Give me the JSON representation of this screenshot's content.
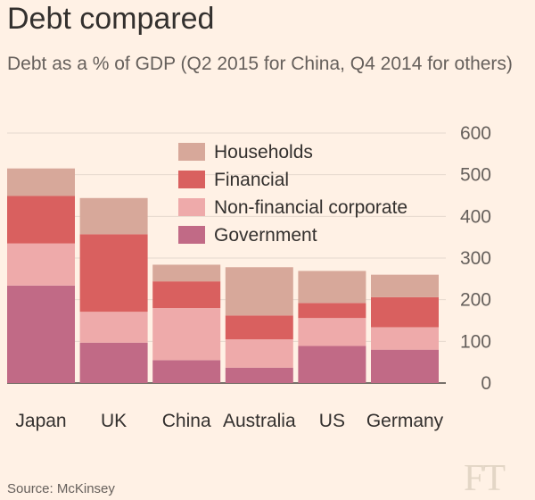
{
  "header": {
    "title": "Debt compared",
    "subtitle": "Debt as a % of GDP (Q2 2015 for China, Q4 2014 for others)"
  },
  "footer": {
    "source": "Source: McKinsey",
    "logo": "FT"
  },
  "colors": {
    "background": "#fff1e5",
    "households": "#d7a89a",
    "financial": "#d9605f",
    "non_financial_corporate": "#eeaaaa",
    "government": "#c16a86"
  },
  "chart_data": {
    "type": "bar",
    "stacked": true,
    "categories": [
      "Japan",
      "UK",
      "China",
      "Australia",
      "US",
      "Germany"
    ],
    "series": [
      {
        "name": "Government",
        "color": "#c16a86",
        "values": [
          234,
          97,
          55,
          37,
          89,
          80
        ]
      },
      {
        "name": "Non-financial corporate",
        "color": "#eeaaaa",
        "values": [
          101,
          74,
          125,
          68,
          67,
          54
        ]
      },
      {
        "name": "Financial",
        "color": "#d9605f",
        "values": [
          114,
          186,
          64,
          57,
          36,
          72
        ]
      },
      {
        "name": "Households",
        "color": "#d7a89a",
        "values": [
          66,
          87,
          40,
          116,
          77,
          54
        ]
      }
    ],
    "legend_order": [
      "Households",
      "Financial",
      "Non-financial corporate",
      "Government"
    ],
    "legend_position": "top-center",
    "yaxis_position": "right",
    "yticks": [
      0,
      100,
      200,
      300,
      400,
      500,
      600
    ],
    "ylim": [
      0,
      600
    ],
    "grid": true,
    "xlabel": "",
    "ylabel": ""
  }
}
